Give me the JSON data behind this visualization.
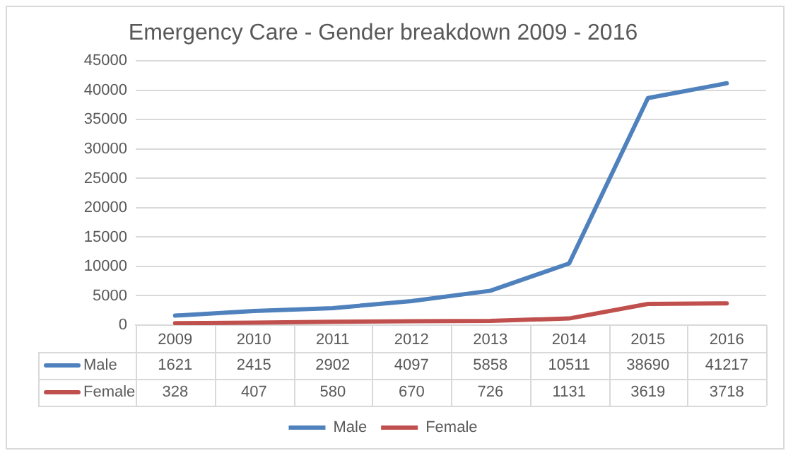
{
  "chart_data": {
    "type": "line",
    "title": "Emergency Care - Gender breakdown 2009 - 2016",
    "categories": [
      "2009",
      "2010",
      "2011",
      "2012",
      "2013",
      "2014",
      "2015",
      "2016"
    ],
    "series": [
      {
        "name": "Male",
        "color": "#4f81bd",
        "values": [
          1621,
          2415,
          2902,
          4097,
          5858,
          10511,
          38690,
          41217
        ]
      },
      {
        "name": "Female",
        "color": "#c0504d",
        "values": [
          328,
          407,
          580,
          670,
          726,
          1131,
          3619,
          3718
        ]
      }
    ],
    "ylim": [
      0,
      45000
    ],
    "yticks": [
      0,
      5000,
      10000,
      15000,
      20000,
      25000,
      30000,
      35000,
      40000,
      45000
    ],
    "grid": "y",
    "legend": "bottom",
    "data_labels": true,
    "marker": "none"
  }
}
